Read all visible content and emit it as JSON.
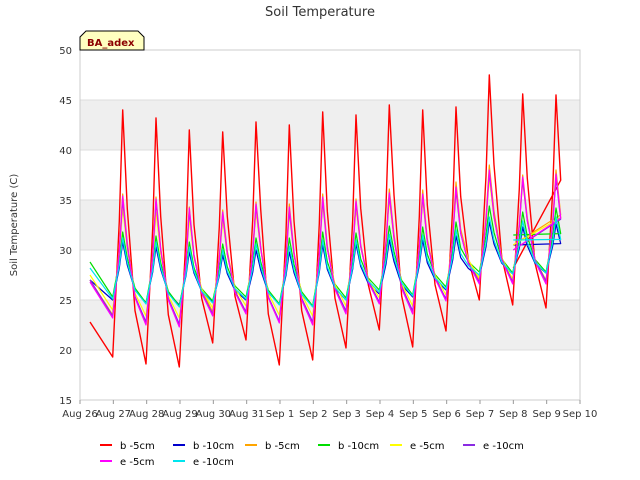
{
  "chart_data": {
    "type": "line",
    "title": "Soil Temperature",
    "xlabel": "",
    "ylabel": "Soil Temperature (C)",
    "site_label": "BA_adex",
    "ylim": [
      15,
      50
    ],
    "yticks": [
      15,
      20,
      25,
      30,
      35,
      40,
      45,
      50
    ],
    "xlim": [
      "2023-08-26",
      "2023-09-10"
    ],
    "xticks": [
      "Aug 26",
      "Aug 27",
      "Aug 28",
      "Aug 29",
      "Aug 30",
      "Aug 31",
      "Sep 1",
      "Sep 2",
      "Sep 3",
      "Sep 4",
      "Sep 5",
      "Sep 6",
      "Sep 7",
      "Sep 8",
      "Sep 9",
      "Sep 10"
    ],
    "grid": true,
    "legend_position": "bottom",
    "x_start": 26.3,
    "x_end": 39.0,
    "series": [
      {
        "name": "b -5cm",
        "color": "#ff0000",
        "daily_max": [
          44.0,
          43.2,
          42.0,
          41.8,
          42.8,
          42.5,
          43.8,
          43.5,
          44.5,
          44.0,
          44.3,
          47.5,
          45.6,
          45.5
        ],
        "daily_min": [
          19.3,
          18.6,
          18.3,
          20.7,
          21.0,
          18.5,
          19.0,
          20.2,
          22.0,
          20.3,
          21.9,
          25.0,
          24.5,
          24.2
        ],
        "start": 22.8,
        "end": 28.2
      },
      {
        "name": "b -10cm",
        "color": "#0000cc",
        "daily_max": [
          30.8,
          30.3,
          29.8,
          29.5,
          30.0,
          29.8,
          30.5,
          30.6,
          31.0,
          31.0,
          31.4,
          32.8,
          32.3,
          32.6
        ],
        "daily_min": [
          25.0,
          24.7,
          24.5,
          24.8,
          25.0,
          24.6,
          24.4,
          25.0,
          25.6,
          25.3,
          26.0,
          27.3,
          27.6,
          27.7
        ],
        "start": 27.0,
        "end": 30.5
      },
      {
        "name": "b -5cm",
        "color": "#ffa500",
        "daily_max": [
          35.6,
          35.3,
          34.3,
          34.0,
          34.8,
          34.6,
          35.6,
          35.1,
          36.1,
          36.0,
          36.8,
          38.5,
          37.5,
          38.0
        ],
        "daily_min": [
          23.5,
          22.6,
          22.4,
          23.8,
          23.8,
          22.8,
          22.7,
          23.8,
          24.8,
          23.8,
          25.0,
          27.0,
          26.8,
          26.8
        ],
        "start": 27.0,
        "end": 30.5
      },
      {
        "name": "b -10cm",
        "color": "#00dd00",
        "daily_max": [
          31.8,
          31.4,
          30.8,
          30.6,
          31.2,
          31.2,
          31.8,
          31.7,
          32.4,
          32.3,
          32.8,
          34.4,
          33.8,
          34.2
        ],
        "daily_min": [
          25.3,
          24.7,
          24.4,
          24.9,
          25.3,
          24.6,
          24.4,
          25.2,
          26.0,
          25.5,
          26.3,
          27.8,
          27.7,
          27.8
        ],
        "start": 28.8,
        "end": 31.5
      },
      {
        "name": "e -5cm",
        "color": "#ffff00",
        "daily_max": [
          34.2,
          33.8,
          33.2,
          33.0,
          33.8,
          33.6,
          34.6,
          34.2,
          35.0,
          35.0,
          35.8,
          37.2,
          36.8,
          37.4
        ],
        "daily_min": [
          24.0,
          23.4,
          23.2,
          24.2,
          24.4,
          23.5,
          23.4,
          24.4,
          25.2,
          24.4,
          25.5,
          27.2,
          27.1,
          27.0
        ],
        "start": 27.5,
        "end": 30.5
      },
      {
        "name": "e -10cm",
        "color": "#8a2be2",
        "daily_max": [
          35.0,
          34.8,
          33.9,
          33.6,
          34.4,
          34.0,
          35.0,
          34.7,
          35.5,
          35.4,
          36.0,
          37.8,
          37.0,
          37.2
        ],
        "daily_min": [
          23.4,
          22.8,
          22.6,
          23.6,
          23.8,
          22.9,
          22.8,
          23.9,
          24.8,
          23.9,
          25.1,
          26.8,
          26.8,
          26.9
        ],
        "start": 27.0,
        "end": 30.0
      },
      {
        "name": "e -5cm",
        "color": "#ff00ff",
        "daily_max": [
          35.4,
          35.1,
          34.2,
          33.8,
          34.6,
          34.3,
          35.3,
          34.9,
          35.7,
          35.6,
          36.3,
          38.0,
          37.3,
          37.6
        ],
        "daily_min": [
          23.2,
          22.5,
          22.3,
          23.4,
          23.6,
          22.7,
          22.5,
          23.6,
          24.6,
          23.6,
          24.9,
          26.6,
          26.6,
          26.6
        ],
        "start": 26.8,
        "end": 30.0
      },
      {
        "name": "e -10cm",
        "color": "#00e5ee",
        "daily_max": [
          31.2,
          30.8,
          30.3,
          30.0,
          30.6,
          30.4,
          31.0,
          31.0,
          31.6,
          31.5,
          32.0,
          33.3,
          32.9,
          33.3
        ],
        "daily_min": [
          25.1,
          24.6,
          24.3,
          24.7,
          25.1,
          24.5,
          24.3,
          25.0,
          25.8,
          25.4,
          26.1,
          27.5,
          27.6,
          27.7
        ],
        "start": 28.2,
        "end": 31.0
      }
    ]
  }
}
